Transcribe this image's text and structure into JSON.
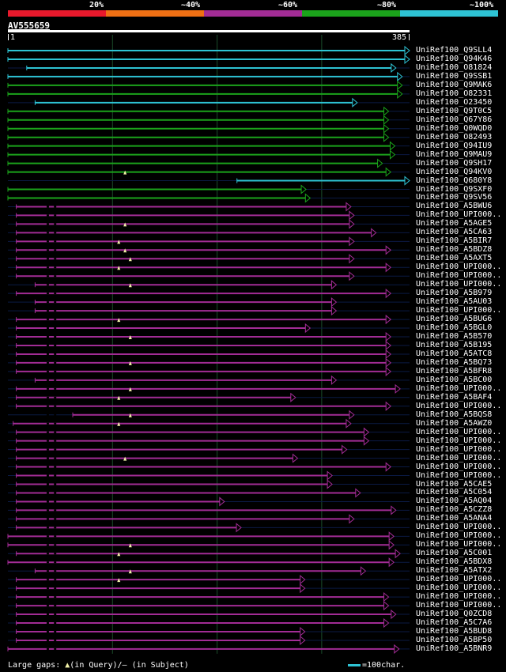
{
  "header": {
    "percent_labels": [
      "20%",
      "~40%",
      "~60%",
      "~80%",
      "~100%"
    ],
    "color_scale": [
      {
        "label": "20%",
        "color": "#e8192c"
      },
      {
        "label": "~40%",
        "color": "#ef7014"
      },
      {
        "label": "~60%",
        "color": "#a22c95"
      },
      {
        "label": "~80%",
        "color": "#1ba31b"
      },
      {
        "label": "~100%",
        "color": "#2ec3d4"
      }
    ]
  },
  "query": {
    "name": "AV555659",
    "start": "1",
    "end": "385",
    "length": 385
  },
  "colors": {
    "cyan": "#2ec3d4",
    "green": "#1ba31b",
    "magenta": "#a22c95",
    "grid": "#1b4d2a",
    "gap_marker": "#f2f2a8",
    "subject_gap": "#000000"
  },
  "hits": [
    {
      "label": "UniRef100_Q9SLL4",
      "color": "cyan",
      "start": 1,
      "end": 385
    },
    {
      "label": "UniRef100_Q94K46",
      "color": "cyan",
      "start": 1,
      "end": 385
    },
    {
      "label": "UniRef100_O81824",
      "color": "cyan",
      "start": 19,
      "end": 372
    },
    {
      "label": "UniRef100_Q9SSB1",
      "color": "cyan",
      "start": 1,
      "end": 378
    },
    {
      "label": "UniRef100_Q9MAK6",
      "color": "green",
      "start": 1,
      "end": 378
    },
    {
      "label": "UniRef100_O82331",
      "color": "green",
      "start": 1,
      "end": 378
    },
    {
      "label": "UniRef100_O23450",
      "color": "cyan",
      "start": 27,
      "end": 335
    },
    {
      "label": "UniRef100_Q9T0C5",
      "color": "green",
      "start": 1,
      "end": 365
    },
    {
      "label": "UniRef100_Q67Y86",
      "color": "green",
      "start": 1,
      "end": 365
    },
    {
      "label": "UniRef100_Q0WQD0",
      "color": "green",
      "start": 1,
      "end": 365
    },
    {
      "label": "UniRef100_O82493",
      "color": "green",
      "start": 1,
      "end": 365
    },
    {
      "label": "UniRef100_Q94IU9",
      "color": "green",
      "start": 1,
      "end": 371
    },
    {
      "label": "UniRef100_Q9MAU9",
      "color": "green",
      "start": 1,
      "end": 371
    },
    {
      "label": "UniRef100_Q9SH17",
      "color": "green",
      "start": 1,
      "end": 359
    },
    {
      "label": "UniRef100_Q94KV0",
      "color": "green",
      "start": 1,
      "end": 367
    },
    {
      "label": "UniRef100_Q680Y8",
      "color": "cyan",
      "start": 220,
      "end": 385
    },
    {
      "label": "UniRef100_Q9SXF0",
      "color": "green",
      "start": 1,
      "end": 286
    },
    {
      "label": "UniRef100_Q9SV56",
      "color": "green",
      "start": 1,
      "end": 290
    },
    {
      "label": "UniRef100_A5BWU6",
      "color": "magenta",
      "start": 9,
      "end": 329
    },
    {
      "label": "UniRef100_UPI000..",
      "color": "magenta",
      "start": 9,
      "end": 332
    },
    {
      "label": "UniRef100_A5AGE5",
      "color": "magenta",
      "start": 9,
      "end": 332
    },
    {
      "label": "UniRef100_A5CA63",
      "color": "magenta",
      "start": 9,
      "end": 353
    },
    {
      "label": "UniRef100_A5BIR7",
      "color": "magenta",
      "start": 9,
      "end": 332
    },
    {
      "label": "UniRef100_A5BDZ8",
      "color": "magenta",
      "start": 9,
      "end": 367
    },
    {
      "label": "UniRef100_A5AXT5",
      "color": "magenta",
      "start": 9,
      "end": 332
    },
    {
      "label": "UniRef100_UPI000..",
      "color": "magenta",
      "start": 9,
      "end": 367
    },
    {
      "label": "UniRef100_UPI000..",
      "color": "magenta",
      "start": 9,
      "end": 332
    },
    {
      "label": "UniRef100_UPI000..",
      "color": "magenta",
      "start": 27,
      "end": 315
    },
    {
      "label": "UniRef100_A5B979",
      "color": "magenta",
      "start": 9,
      "end": 367
    },
    {
      "label": "UniRef100_A5AU03",
      "color": "magenta",
      "start": 27,
      "end": 315
    },
    {
      "label": "UniRef100_UPI000..",
      "color": "magenta",
      "start": 27,
      "end": 315
    },
    {
      "label": "UniRef100_A5BUG6",
      "color": "magenta",
      "start": 9,
      "end": 367
    },
    {
      "label": "UniRef100_A5BGL0",
      "color": "magenta",
      "start": 9,
      "end": 290
    },
    {
      "label": "UniRef100_A5B570",
      "color": "magenta",
      "start": 9,
      "end": 367
    },
    {
      "label": "UniRef100_A5B195",
      "color": "magenta",
      "start": 9,
      "end": 367
    },
    {
      "label": "UniRef100_A5ATC8",
      "color": "magenta",
      "start": 9,
      "end": 367
    },
    {
      "label": "UniRef100_A5BQ73",
      "color": "magenta",
      "start": 9,
      "end": 367
    },
    {
      "label": "UniRef100_A5BFR8",
      "color": "magenta",
      "start": 9,
      "end": 367
    },
    {
      "label": "UniRef100_A5BC00",
      "color": "magenta",
      "start": 27,
      "end": 315
    },
    {
      "label": "UniRef100_UPI000..",
      "color": "magenta",
      "start": 9,
      "end": 376
    },
    {
      "label": "UniRef100_A5BAF4",
      "color": "magenta",
      "start": 9,
      "end": 276
    },
    {
      "label": "UniRef100_UPI000..",
      "color": "magenta",
      "start": 9,
      "end": 367
    },
    {
      "label": "UniRef100_A5BQS8",
      "color": "magenta",
      "start": 63,
      "end": 332
    },
    {
      "label": "UniRef100_A5AWZ0",
      "color": "magenta",
      "start": 6,
      "end": 329
    },
    {
      "label": "UniRef100_UPI000..",
      "color": "magenta",
      "start": 9,
      "end": 346
    },
    {
      "label": "UniRef100_UPI000..",
      "color": "magenta",
      "start": 9,
      "end": 346
    },
    {
      "label": "UniRef100_UPI000..",
      "color": "magenta",
      "start": 9,
      "end": 325
    },
    {
      "label": "UniRef100_UPI000..",
      "color": "magenta",
      "start": 9,
      "end": 278
    },
    {
      "label": "UniRef100_UPI000..",
      "color": "magenta",
      "start": 9,
      "end": 367
    },
    {
      "label": "UniRef100_UPI000..",
      "color": "magenta",
      "start": 9,
      "end": 311
    },
    {
      "label": "UniRef100_A5CAE5",
      "color": "magenta",
      "start": 9,
      "end": 311
    },
    {
      "label": "UniRef100_A5C054",
      "color": "magenta",
      "start": 9,
      "end": 338
    },
    {
      "label": "UniRef100_A5AQ04",
      "color": "magenta",
      "start": 9,
      "end": 208
    },
    {
      "label": "UniRef100_A5CZZ8",
      "color": "magenta",
      "start": 9,
      "end": 372
    },
    {
      "label": "UniRef100_A5ANA4",
      "color": "magenta",
      "start": 9,
      "end": 332
    },
    {
      "label": "UniRef100_UPI000..",
      "color": "magenta",
      "start": 9,
      "end": 224
    },
    {
      "label": "UniRef100_UPI000..",
      "color": "magenta",
      "start": 1,
      "end": 370
    },
    {
      "label": "UniRef100_UPI000..",
      "color": "magenta",
      "start": 1,
      "end": 370
    },
    {
      "label": "UniRef100_A5C001",
      "color": "magenta",
      "start": 9,
      "end": 376
    },
    {
      "label": "UniRef100_A5BDX8",
      "color": "magenta",
      "start": 1,
      "end": 370
    },
    {
      "label": "UniRef100_A5ATX2",
      "color": "magenta",
      "start": 27,
      "end": 343
    },
    {
      "label": "UniRef100_UPI000..",
      "color": "magenta",
      "start": 9,
      "end": 285
    },
    {
      "label": "UniRef100_UPI000..",
      "color": "magenta",
      "start": 9,
      "end": 285
    },
    {
      "label": "UniRef100_UPI000..",
      "color": "magenta",
      "start": 9,
      "end": 365
    },
    {
      "label": "UniRef100_UPI000..",
      "color": "magenta",
      "start": 9,
      "end": 365
    },
    {
      "label": "UniRef100_Q0ZCD8",
      "color": "magenta",
      "start": 9,
      "end": 372
    },
    {
      "label": "UniRef100_A5C7A6",
      "color": "magenta",
      "start": 9,
      "end": 365
    },
    {
      "label": "UniRef100_A5BUD8",
      "color": "magenta",
      "start": 9,
      "end": 285
    },
    {
      "label": "UniRef100_A5BP50",
      "color": "magenta",
      "start": 9,
      "end": 285
    },
    {
      "label": "UniRef100_A5BNR9",
      "color": "magenta",
      "start": 1,
      "end": 375
    }
  ],
  "footer": {
    "gaps_prefix": "Large gaps: ",
    "gaps_query": "(in Query)/",
    "gaps_dash": "–",
    "gaps_subject": " (in Subject)",
    "scale_label": "=100char."
  }
}
